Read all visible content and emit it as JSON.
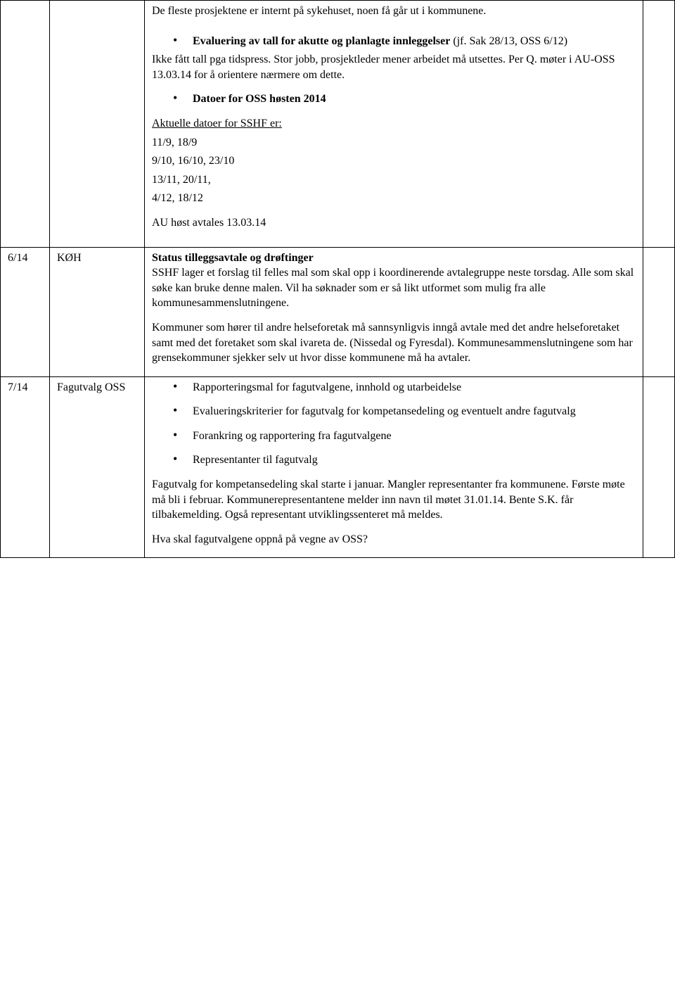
{
  "rows": [
    {
      "num": "",
      "topic": "",
      "content": {
        "intro": "De fleste prosjektene er internt på sykehuset, noen få går ut i kommunene.",
        "bullet1_bold": "Evaluering av tall for akutte og planlagte innleggelser",
        "bullet1_rest": " (jf. Sak 28/13, OSS 6/12)",
        "p1": "Ikke fått tall pga tidspress. Stor jobb, prosjektleder mener arbeidet må utsettes. Per Q. møter i AU-OSS 13.03.14 for å orientere nærmere om dette.",
        "bullet2": "Datoer for OSS høsten 2014",
        "dates_header": "Aktuelle datoer for SSHF er:",
        "dates_l1": "11/9, 18/9",
        "dates_l2": "9/10, 16/10, 23/10",
        "dates_l3": "13/11, 20/11,",
        "dates_l4": "4/12, 18/12",
        "au": "AU høst avtales 13.03.14"
      }
    },
    {
      "num": "6/14",
      "topic": "KØH",
      "content": {
        "h": "Status tilleggsavtale og drøftinger",
        "p1": "SSHF lager et forslag til felles mal som skal opp i koordinerende avtalegruppe neste torsdag. Alle som skal søke kan bruke denne malen. Vil ha søknader som er så likt utformet som mulig fra alle kommunesammenslutningene.",
        "p2": "Kommuner som hører til andre helseforetak må sannsynligvis inngå avtale med det andre helseforetaket samt med det foretaket som skal ivareta de. (Nissedal og Fyresdal). Kommunesammenslutningene som har grensekommuner sjekker selv ut hvor disse kommunene må ha avtaler."
      }
    },
    {
      "num": "7/14",
      "topic": "Fagutvalg OSS",
      "content": {
        "b1": "Rapporteringsmal for fagutvalgene, innhold og utarbeidelse",
        "b2": "Evalueringskriterier for fagutvalg for kompetansedeling og eventuelt andre fagutvalg",
        "b3": "Forankring og rapportering fra fagutvalgene",
        "b4": "Representanter til fagutvalg",
        "p1": "Fagutvalg for kompetansedeling skal starte i januar. Mangler representanter fra kommunene. Første møte må bli i februar. Kommunerepresentantene melder inn navn til møtet 31.01.14. Bente S.K. får tilbakemelding. Også representant utviklingssenteret må meldes.",
        "p2": "Hva skal fagutvalgene oppnå på vegne av OSS?"
      }
    }
  ]
}
